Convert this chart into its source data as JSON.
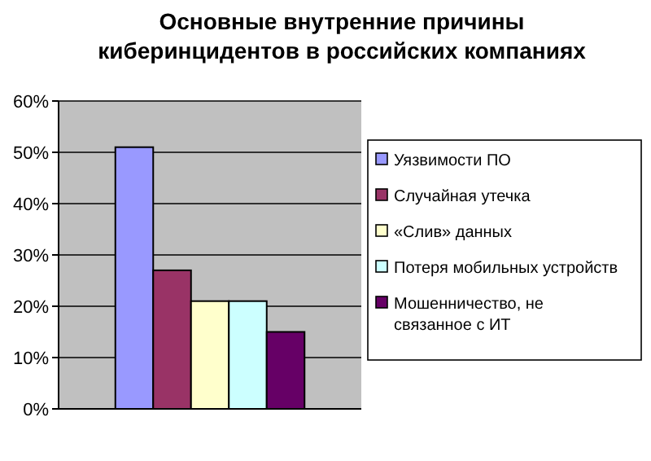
{
  "chart_data": {
    "type": "bar",
    "title": "Основные внутренние причины\nкиберинцидентов в российских компаниях",
    "categories": [
      null
    ],
    "series": [
      {
        "name": "Уязвимости ПО",
        "color": "#9999ff",
        "values": [
          51
        ]
      },
      {
        "name": "Случайная утечка",
        "color": "#993366",
        "values": [
          27
        ]
      },
      {
        "name": "«Слив» данных",
        "color": "#ffffcc",
        "values": [
          21
        ]
      },
      {
        "name": "Потеря мобильных устройств",
        "color": "#ccffff",
        "values": [
          21
        ]
      },
      {
        "name": "Мошенничество, не связанное с ИТ",
        "color": "#660066",
        "values": [
          15
        ]
      }
    ],
    "ylim": [
      0,
      60
    ],
    "yticks": [
      {
        "value": 0,
        "label": "0%"
      },
      {
        "value": 10,
        "label": "10%"
      },
      {
        "value": 20,
        "label": "20%"
      },
      {
        "value": 30,
        "label": "30%"
      },
      {
        "value": 40,
        "label": "40%"
      },
      {
        "value": 50,
        "label": "50%"
      },
      {
        "value": 60,
        "label": "60%"
      }
    ],
    "grid": "y",
    "legend": "right"
  }
}
